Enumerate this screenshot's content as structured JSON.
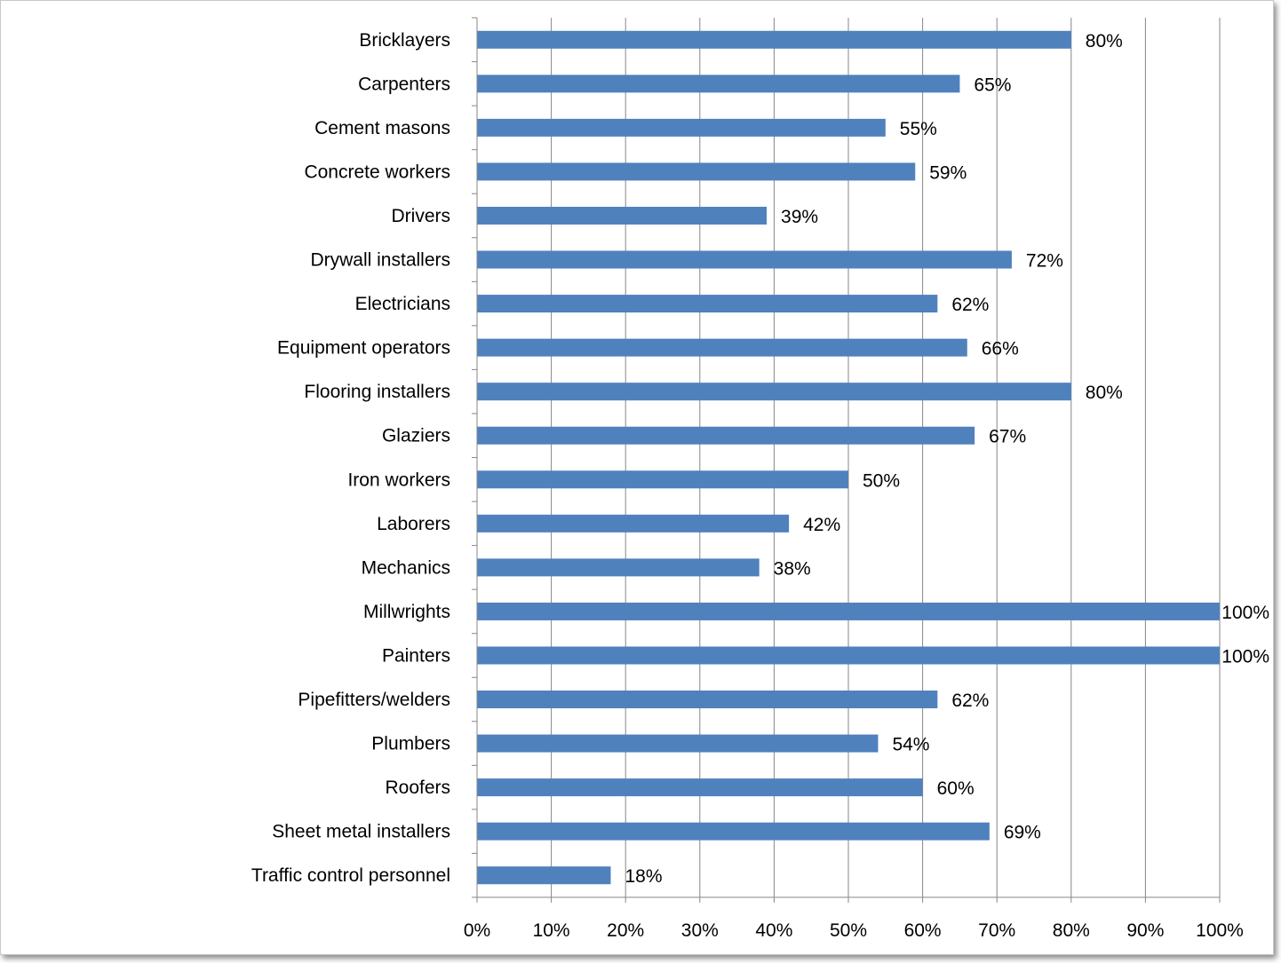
{
  "chart_data": {
    "type": "bar",
    "orientation": "horizontal",
    "categories": [
      "Bricklayers",
      "Carpenters",
      "Cement masons",
      "Concrete workers",
      "Drivers",
      "Drywall installers",
      "Electricians",
      "Equipment operators",
      "Flooring installers",
      "Glaziers",
      "Iron workers",
      "Laborers",
      "Mechanics",
      "Millwrights",
      "Painters",
      "Pipefitters/welders",
      "Plumbers",
      "Roofers",
      "Sheet metal installers",
      "Traffic control personnel"
    ],
    "values": [
      80,
      65,
      55,
      59,
      39,
      72,
      62,
      66,
      80,
      67,
      50,
      42,
      38,
      100,
      100,
      62,
      54,
      60,
      69,
      18
    ],
    "data_labels": [
      "80%",
      "65%",
      "55%",
      "59%",
      "39%",
      "72%",
      "62%",
      "66%",
      "80%",
      "67%",
      "50%",
      "42%",
      "38%",
      "100%",
      "100%",
      "62%",
      "54%",
      "60%",
      "69%",
      "18%"
    ],
    "x_ticks": [
      "0%",
      "10%",
      "20%",
      "30%",
      "40%",
      "50%",
      "60%",
      "70%",
      "80%",
      "90%",
      "100%"
    ],
    "xlim": [
      0,
      100
    ],
    "grid": "vertical",
    "legend": "none",
    "title": "",
    "xlabel": "",
    "ylabel": "",
    "bar_color": "#4f81bd",
    "grid_color": "#878787"
  }
}
